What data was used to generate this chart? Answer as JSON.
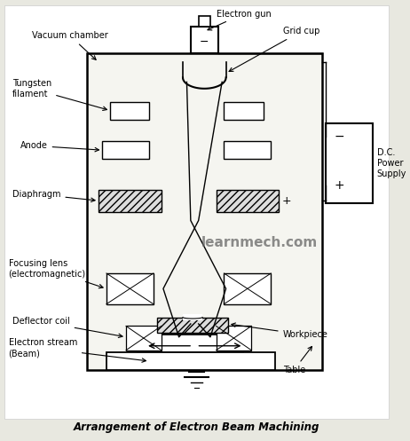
{
  "title": "Arrangement of Electron Beam Machining",
  "watermark": "learnmech.com",
  "labels": {
    "vacuum_chamber": "Vacuum chamber",
    "electron_gun": "Electron gun",
    "grid_cup": "Grid cup",
    "tungsten_filament": "Tungsten\nfilament",
    "anode": "Anode",
    "diaphragm": "Diaphragm",
    "focusing_lens": "Focusing lens\n(electromagnetic)",
    "deflector_coil": "Deflector coil",
    "electron_stream": "Electron stream\n(Beam)",
    "workpiece": "Workpiece",
    "table": "Table",
    "dc_power": "D.C.\nPower\nSupply"
  },
  "colors": {
    "line": "#333333",
    "bg": "#e8e8e0",
    "box_fill": "#ffffff",
    "chamber_fill": "#f5f5f0"
  }
}
